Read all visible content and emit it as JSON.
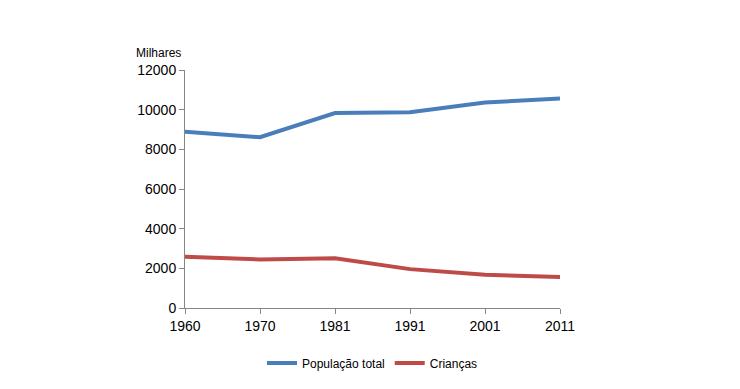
{
  "chart_data": {
    "type": "line",
    "ylabel": "Milhares",
    "categories": [
      "1960",
      "1970",
      "1981",
      "1991",
      "2001",
      "2011"
    ],
    "series": [
      {
        "name": "População total",
        "color": "#4a7ebb",
        "values": [
          8890,
          8610,
          9830,
          9870,
          10360,
          10560
        ]
      },
      {
        "name": "Crianças",
        "color": "#be4b48",
        "values": [
          2590,
          2450,
          2510,
          1960,
          1680,
          1560
        ]
      }
    ],
    "ylim": [
      0,
      12000
    ],
    "yticks": [
      0,
      2000,
      4000,
      6000,
      8000,
      10000,
      12000
    ],
    "grid": false,
    "legend": "bottom"
  }
}
